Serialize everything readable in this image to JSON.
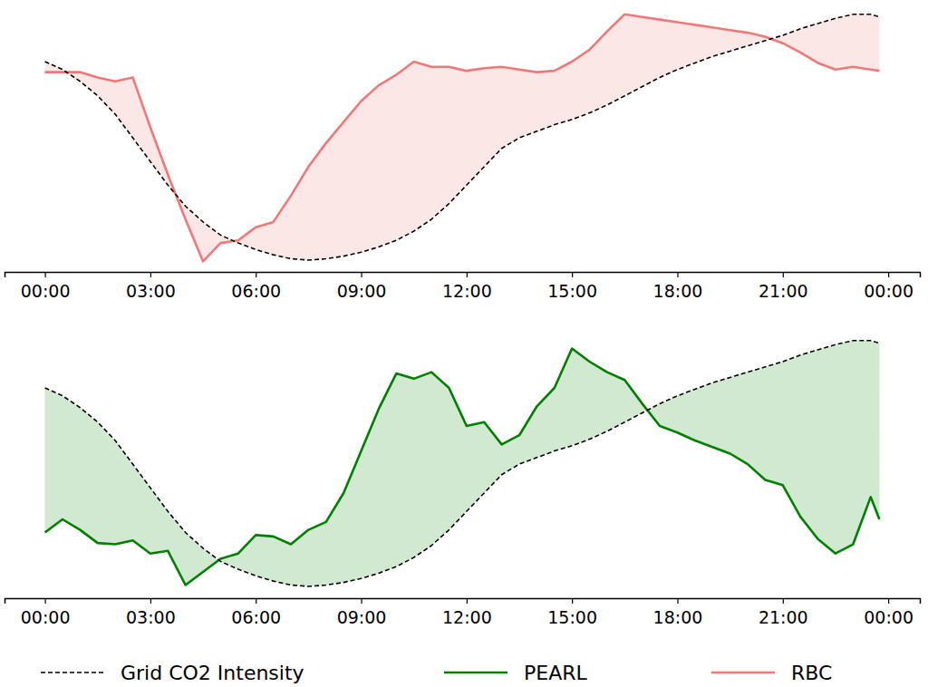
{
  "chart_data": [
    {
      "type": "line",
      "x": [
        0,
        0.5,
        1,
        1.5,
        2,
        2.5,
        3,
        3.5,
        4,
        4.5,
        5,
        5.5,
        6,
        6.5,
        7,
        7.5,
        8,
        8.5,
        9,
        9.5,
        10,
        10.5,
        11,
        11.5,
        12,
        12.5,
        13,
        13.5,
        14,
        14.5,
        15,
        15.5,
        16,
        16.5,
        17,
        17.5,
        18,
        18.5,
        19,
        19.5,
        20,
        20.5,
        21,
        21.5,
        22,
        22.5,
        23,
        23.5,
        23.75
      ],
      "series": [
        {
          "name": "Grid CO2 Intensity",
          "color": "#000000",
          "line_style": "dashed",
          "values": [
            80,
            77,
            72.5,
            67,
            60,
            51,
            42,
            33,
            25,
            19,
            14,
            11,
            8.5,
            6.5,
            5,
            4.5,
            5,
            6,
            7.5,
            9.5,
            12,
            15.5,
            20,
            26,
            33,
            40,
            47,
            51,
            53.5,
            56,
            58,
            60.5,
            63.5,
            67,
            70.5,
            74,
            77,
            79.5,
            82,
            84,
            86,
            88,
            90,
            92.5,
            94.5,
            96.5,
            98,
            98,
            97
          ]
        },
        {
          "name": "RBC",
          "color": "#f07878",
          "line_style": "solid",
          "values": [
            76,
            76,
            76,
            74,
            72.5,
            74,
            55,
            37,
            20,
            4,
            11,
            12,
            17,
            19,
            29,
            40,
            49,
            57,
            65,
            71,
            75,
            80,
            78,
            78,
            76.5,
            77.5,
            78,
            77,
            76,
            76.5,
            80,
            84.5,
            91.5,
            98,
            97,
            96,
            95,
            94,
            93,
            92,
            91,
            89.5,
            87,
            83.5,
            79.5,
            77,
            78,
            77,
            76.5
          ]
        }
      ],
      "xlim": [
        -1.15,
        24.9
      ],
      "xticks": [
        {
          "value": 0,
          "label": "00:00"
        },
        {
          "value": 3,
          "label": "03:00"
        },
        {
          "value": 6,
          "label": "06:00"
        },
        {
          "value": 9,
          "label": "09:00"
        },
        {
          "value": 12,
          "label": "12:00"
        },
        {
          "value": 15,
          "label": "15:00"
        },
        {
          "value": 18,
          "label": "18:00"
        },
        {
          "value": 21,
          "label": "21:00"
        },
        {
          "value": 24,
          "label": "00:00"
        }
      ],
      "ylim": [
        0,
        100
      ],
      "tick_labels": "x"
    },
    {
      "type": "line",
      "x": [
        0,
        0.5,
        1,
        1.5,
        2,
        2.5,
        3,
        3.5,
        4,
        4.5,
        5,
        5.5,
        6,
        6.5,
        7,
        7.5,
        8,
        8.5,
        9,
        9.5,
        10,
        10.5,
        11,
        11.5,
        12,
        12.5,
        13,
        13.5,
        14,
        14.5,
        15,
        15.5,
        16,
        16.5,
        17,
        17.5,
        18,
        18.5,
        19,
        19.5,
        20,
        20.5,
        21,
        21.5,
        22,
        22.5,
        23,
        23.5,
        23.75
      ],
      "series": [
        {
          "name": "Grid CO2 Intensity",
          "color": "#000000",
          "line_style": "dashed",
          "values": [
            80,
            77,
            72.5,
            67,
            60,
            51,
            42,
            33,
            25,
            19,
            14,
            11,
            8.5,
            6.5,
            5,
            4.5,
            5,
            6,
            7.5,
            9.5,
            12,
            15.5,
            20,
            26,
            33,
            40,
            47,
            51,
            53.5,
            56,
            58,
            60.5,
            63.5,
            67,
            70.5,
            74,
            77,
            79.5,
            82,
            84,
            86,
            88,
            90,
            92.5,
            94.5,
            96.5,
            98,
            98,
            97
          ]
        },
        {
          "name": "PEARL",
          "color": "#008000",
          "line_style": "solid",
          "values": [
            25,
            30,
            26,
            21,
            20.5,
            22,
            17,
            18,
            5,
            10,
            15,
            17,
            24,
            23.5,
            20.5,
            26,
            29,
            40,
            56,
            72,
            85.5,
            83.5,
            86,
            80,
            65.5,
            67,
            58.5,
            62,
            73,
            80,
            95,
            90,
            86,
            83,
            74,
            65.5,
            63,
            60,
            57.5,
            55,
            51,
            45,
            43,
            31,
            22.5,
            17,
            20.5,
            38.5,
            30
          ]
        }
      ],
      "xlim": [
        -1.15,
        24.9
      ],
      "xticks": [
        {
          "value": 0,
          "label": "00:00"
        },
        {
          "value": 3,
          "label": "03:00"
        },
        {
          "value": 6,
          "label": "06:00"
        },
        {
          "value": 9,
          "label": "09:00"
        },
        {
          "value": 12,
          "label": "12:00"
        },
        {
          "value": 15,
          "label": "15:00"
        },
        {
          "value": 18,
          "label": "18:00"
        },
        {
          "value": 21,
          "label": "21:00"
        },
        {
          "value": 24,
          "label": "00:00"
        }
      ],
      "ylim": [
        0,
        100
      ],
      "tick_labels": "x",
      "legend": "bottom"
    }
  ]
}
